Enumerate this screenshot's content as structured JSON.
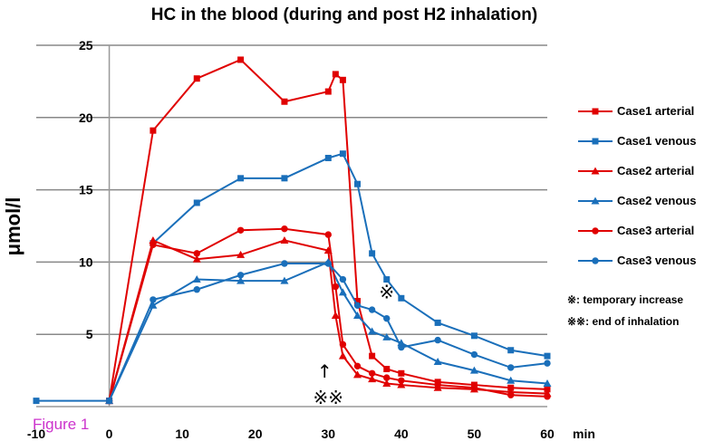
{
  "chart_data": {
    "type": "line",
    "title": "HC in the blood (during and post  H2 inhalation)",
    "ylabel": "μmol/l",
    "xlabel": "min",
    "xlim": [
      -10,
      60
    ],
    "ylim": [
      0,
      25
    ],
    "xticks": [
      -10,
      0,
      10,
      20,
      30,
      40,
      50,
      60
    ],
    "yticks": [
      5,
      10,
      15,
      20,
      25
    ],
    "grid": "horizontal",
    "legend_position": "right",
    "series": [
      {
        "name": "Case1 arterial",
        "color": "#e00000",
        "marker": "square",
        "points": [
          [
            0,
            0.4
          ],
          [
            6,
            19.1
          ],
          [
            12,
            22.7
          ],
          [
            18,
            24.0
          ],
          [
            24,
            21.1
          ],
          [
            30,
            21.8
          ],
          [
            31,
            23.0
          ],
          [
            32,
            22.6
          ],
          [
            34,
            7.3
          ],
          [
            36,
            3.5
          ],
          [
            38,
            2.6
          ],
          [
            40,
            2.3
          ],
          [
            45,
            1.7
          ],
          [
            50,
            1.5
          ],
          [
            55,
            1.3
          ],
          [
            60,
            1.2
          ]
        ]
      },
      {
        "name": "Case1 venous",
        "color": "#1a6fba",
        "marker": "square",
        "points": [
          [
            -10,
            0.4
          ],
          [
            0,
            0.4
          ],
          [
            6,
            11.3
          ],
          [
            12,
            14.1
          ],
          [
            18,
            15.8
          ],
          [
            24,
            15.8
          ],
          [
            30,
            17.2
          ],
          [
            32,
            17.5
          ],
          [
            34,
            15.4
          ],
          [
            36,
            10.6
          ],
          [
            38,
            8.8
          ],
          [
            40,
            7.5
          ],
          [
            45,
            5.8
          ],
          [
            50,
            4.9
          ],
          [
            55,
            3.9
          ],
          [
            60,
            3.5
          ]
        ]
      },
      {
        "name": "Case2 arterial",
        "color": "#e00000",
        "marker": "triangle",
        "points": [
          [
            0,
            0.4
          ],
          [
            6,
            11.5
          ],
          [
            12,
            10.2
          ],
          [
            18,
            10.5
          ],
          [
            24,
            11.5
          ],
          [
            30,
            10.8
          ],
          [
            31,
            6.3
          ],
          [
            32,
            3.5
          ],
          [
            34,
            2.2
          ],
          [
            36,
            1.9
          ],
          [
            38,
            1.6
          ],
          [
            40,
            1.5
          ],
          [
            45,
            1.3
          ],
          [
            50,
            1.2
          ],
          [
            55,
            1.0
          ],
          [
            60,
            0.9
          ]
        ]
      },
      {
        "name": "Case2 venous",
        "color": "#1a6fba",
        "marker": "triangle",
        "points": [
          [
            0,
            0.4
          ],
          [
            6,
            7.0
          ],
          [
            12,
            8.8
          ],
          [
            18,
            8.7
          ],
          [
            24,
            8.7
          ],
          [
            30,
            10.0
          ],
          [
            32,
            7.9
          ],
          [
            34,
            6.3
          ],
          [
            36,
            5.2
          ],
          [
            38,
            4.8
          ],
          [
            40,
            4.4
          ],
          [
            45,
            3.1
          ],
          [
            50,
            2.5
          ],
          [
            55,
            1.8
          ],
          [
            60,
            1.6
          ]
        ]
      },
      {
        "name": "Case3 arterial",
        "color": "#e00000",
        "marker": "circle",
        "points": [
          [
            0,
            0.4
          ],
          [
            6,
            11.2
          ],
          [
            12,
            10.6
          ],
          [
            18,
            12.2
          ],
          [
            24,
            12.3
          ],
          [
            30,
            11.9
          ],
          [
            31,
            8.3
          ],
          [
            32,
            4.3
          ],
          [
            34,
            2.8
          ],
          [
            36,
            2.3
          ],
          [
            38,
            2.0
          ],
          [
            40,
            1.8
          ],
          [
            45,
            1.5
          ],
          [
            50,
            1.3
          ],
          [
            55,
            0.8
          ],
          [
            60,
            0.7
          ]
        ]
      },
      {
        "name": "Case3 venous",
        "color": "#1a6fba",
        "marker": "circle",
        "points": [
          [
            0,
            0.4
          ],
          [
            6,
            7.4
          ],
          [
            12,
            8.1
          ],
          [
            18,
            9.1
          ],
          [
            24,
            9.9
          ],
          [
            30,
            9.9
          ],
          [
            32,
            8.8
          ],
          [
            34,
            7.0
          ],
          [
            36,
            6.7
          ],
          [
            38,
            6.1
          ],
          [
            40,
            4.1
          ],
          [
            45,
            4.6
          ],
          [
            50,
            3.6
          ],
          [
            55,
            2.7
          ],
          [
            60,
            3.0
          ]
        ]
      }
    ],
    "annotations": [
      {
        "text": "※",
        "x": 38,
        "y": 7.5
      },
      {
        "text": "↑",
        "x": 29.5,
        "y": 2.0
      },
      {
        "text": "※※",
        "x": 30,
        "y": 0.2
      }
    ],
    "notes": [
      "※: temporary increase",
      "※※: end of inhalation"
    ],
    "figure_label": "Figure 1"
  }
}
